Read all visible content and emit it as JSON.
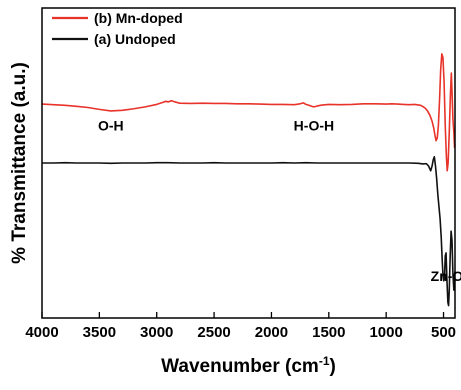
{
  "chart_data": {
    "type": "line",
    "xlabel": "Wavenumber (cm",
    "xlabel_sup": "-1",
    "xlabel_end": ")",
    "ylabel": "% Transmittance (a.u.)",
    "xlim": [
      4000,
      400
    ],
    "x_reversed": true,
    "ylim": [
      0,
      1
    ],
    "y_ticks_shown": false,
    "x_ticks": [
      4000,
      3500,
      3000,
      2500,
      2000,
      1500,
      1000,
      500
    ],
    "x_tick_labels": [
      "4000",
      "3500",
      "3000",
      "2500",
      "2000",
      "1500",
      "1000",
      "500"
    ],
    "grid": false,
    "legend": {
      "placement": "top-left",
      "entries": [
        {
          "label": "(b) Mn-doped",
          "color": "#e8332a"
        },
        {
          "label": "(a) Undoped",
          "color": "#111111"
        }
      ]
    },
    "annotations": [
      {
        "text": "O-H",
        "x": 3400,
        "y": 0.605
      },
      {
        "text": "H-O-H",
        "x": 1630,
        "y": 0.605
      },
      {
        "text": "Zn-O",
        "x": 470,
        "y": 0.12
      }
    ],
    "series": [
      {
        "name": "(b) Mn-doped",
        "color": "#e8332a",
        "points": [
          [
            4000,
            0.69
          ],
          [
            3900,
            0.688
          ],
          [
            3800,
            0.686
          ],
          [
            3700,
            0.683
          ],
          [
            3600,
            0.679
          ],
          [
            3500,
            0.673
          ],
          [
            3400,
            0.668
          ],
          [
            3300,
            0.67
          ],
          [
            3200,
            0.675
          ],
          [
            3100,
            0.681
          ],
          [
            3000,
            0.689
          ],
          [
            2950,
            0.695
          ],
          [
            2920,
            0.699
          ],
          [
            2900,
            0.697
          ],
          [
            2870,
            0.701
          ],
          [
            2850,
            0.698
          ],
          [
            2800,
            0.693
          ],
          [
            2700,
            0.692
          ],
          [
            2600,
            0.693
          ],
          [
            2500,
            0.692
          ],
          [
            2400,
            0.692
          ],
          [
            2300,
            0.691
          ],
          [
            2200,
            0.691
          ],
          [
            2100,
            0.69
          ],
          [
            2000,
            0.689
          ],
          [
            1900,
            0.689
          ],
          [
            1800,
            0.688
          ],
          [
            1750,
            0.691
          ],
          [
            1720,
            0.694
          ],
          [
            1700,
            0.689
          ],
          [
            1680,
            0.687
          ],
          [
            1650,
            0.683
          ],
          [
            1630,
            0.681
          ],
          [
            1600,
            0.684
          ],
          [
            1560,
            0.687
          ],
          [
            1500,
            0.689
          ],
          [
            1400,
            0.688
          ],
          [
            1300,
            0.689
          ],
          [
            1200,
            0.691
          ],
          [
            1100,
            0.691
          ],
          [
            1000,
            0.69
          ],
          [
            950,
            0.691
          ],
          [
            900,
            0.69
          ],
          [
            850,
            0.689
          ],
          [
            800,
            0.688
          ],
          [
            750,
            0.689
          ],
          [
            700,
            0.686
          ],
          [
            680,
            0.682
          ],
          [
            660,
            0.677
          ],
          [
            640,
            0.668
          ],
          [
            620,
            0.655
          ],
          [
            600,
            0.635
          ],
          [
            585,
            0.612
          ],
          [
            575,
            0.59
          ],
          [
            565,
            0.572
          ],
          [
            555,
            0.58
          ],
          [
            545,
            0.62
          ],
          [
            535,
            0.7
          ],
          [
            525,
            0.8
          ],
          [
            515,
            0.852
          ],
          [
            505,
            0.84
          ],
          [
            495,
            0.76
          ],
          [
            485,
            0.62
          ],
          [
            475,
            0.52
          ],
          [
            468,
            0.475
          ],
          [
            460,
            0.5
          ],
          [
            450,
            0.6
          ],
          [
            440,
            0.72
          ],
          [
            432,
            0.79
          ],
          [
            425,
            0.72
          ],
          [
            418,
            0.64
          ],
          [
            410,
            0.6
          ],
          [
            404,
            0.55
          ],
          [
            400,
            0.56
          ]
        ]
      },
      {
        "name": "(a) Undoped",
        "color": "#111111",
        "points": [
          [
            4000,
            0.5
          ],
          [
            3900,
            0.5
          ],
          [
            3800,
            0.501
          ],
          [
            3700,
            0.5
          ],
          [
            3600,
            0.5
          ],
          [
            3500,
            0.5
          ],
          [
            3400,
            0.499
          ],
          [
            3300,
            0.5
          ],
          [
            3200,
            0.5
          ],
          [
            3100,
            0.5
          ],
          [
            3000,
            0.501
          ],
          [
            2900,
            0.501
          ],
          [
            2800,
            0.5
          ],
          [
            2700,
            0.5
          ],
          [
            2600,
            0.5
          ],
          [
            2500,
            0.501
          ],
          [
            2400,
            0.5
          ],
          [
            2300,
            0.5
          ],
          [
            2200,
            0.5
          ],
          [
            2100,
            0.5
          ],
          [
            2000,
            0.5
          ],
          [
            1900,
            0.501
          ],
          [
            1800,
            0.5
          ],
          [
            1700,
            0.501
          ],
          [
            1600,
            0.5
          ],
          [
            1500,
            0.5
          ],
          [
            1400,
            0.5
          ],
          [
            1300,
            0.5
          ],
          [
            1200,
            0.5
          ],
          [
            1100,
            0.5
          ],
          [
            1000,
            0.5
          ],
          [
            900,
            0.5
          ],
          [
            800,
            0.5
          ],
          [
            720,
            0.499
          ],
          [
            680,
            0.497
          ],
          [
            650,
            0.498
          ],
          [
            630,
            0.49
          ],
          [
            612,
            0.475
          ],
          [
            600,
            0.49
          ],
          [
            590,
            0.51
          ],
          [
            580,
            0.52
          ],
          [
            570,
            0.49
          ],
          [
            560,
            0.45
          ],
          [
            550,
            0.4
          ],
          [
            540,
            0.36
          ],
          [
            530,
            0.32
          ],
          [
            520,
            0.26
          ],
          [
            512,
            0.19
          ],
          [
            505,
            0.14
          ],
          [
            498,
            0.12
          ],
          [
            492,
            0.125
          ],
          [
            485,
            0.2
          ],
          [
            478,
            0.21
          ],
          [
            470,
            0.12
          ],
          [
            462,
            0.05
          ],
          [
            456,
            0.04
          ],
          [
            450,
            0.09
          ],
          [
            442,
            0.2
          ],
          [
            434,
            0.28
          ],
          [
            426,
            0.25
          ],
          [
            418,
            0.14
          ],
          [
            410,
            0.09
          ],
          [
            404,
            0.13
          ],
          [
            400,
            0.15
          ]
        ]
      }
    ]
  }
}
